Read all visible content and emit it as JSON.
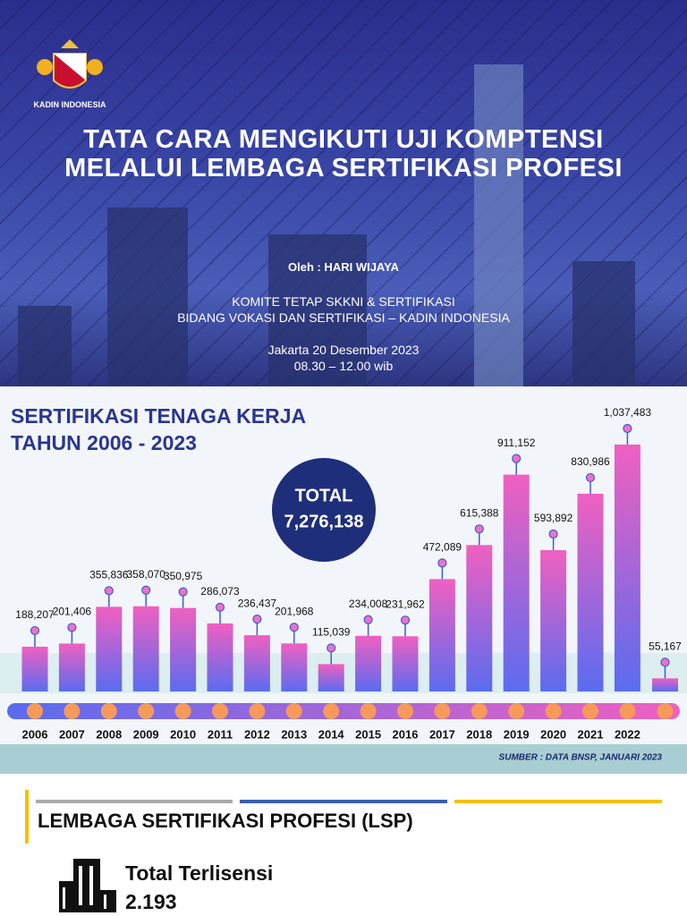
{
  "header": {
    "logo_text": "KADIN INDONESIA",
    "title_lines": [
      "TATA CARA MENGIKUTI UJI KOMPTENSI",
      "MELALUI LEMBAGA SERTIFIKASI PROFESI"
    ],
    "author": "Oleh : HARI WIJAYA",
    "committee_lines": [
      "KOMITE TETAP SKKNI & SERTIFIKASI",
      "BIDANG VOKASI DAN SERTIFIKASI – KADIN INDONESIA"
    ],
    "date": "Jakarta 20 Desember 2023",
    "time": "08.30 – 12.00 wib"
  },
  "chart_data": {
    "type": "bar",
    "title": "SERTIFIKASI TENAGA KERJA TAHUN 2006 - 2023",
    "categories": [
      "2006",
      "2007",
      "2008",
      "2009",
      "2010",
      "2011",
      "2012",
      "2013",
      "2014",
      "2015",
      "2016",
      "2017",
      "2018",
      "2019",
      "2020",
      "2021",
      "2022",
      null
    ],
    "values": [
      188207,
      201406,
      355836,
      358070,
      350975,
      286073,
      236437,
      201968,
      115039,
      234008,
      231962,
      472089,
      615388,
      911152,
      593892,
      830986,
      1037483,
      55167
    ],
    "value_labels": [
      "188,207",
      "201,406",
      "355,836",
      "358,070",
      "350,975",
      "286,073",
      "236,437",
      "201,968",
      "115,039",
      "234,008",
      "231,962",
      "472,089",
      "615,388",
      "911,152",
      "593,892",
      "830,986",
      "1,037,483",
      "55,167"
    ],
    "total": {
      "label": "TOTAL",
      "value": 7276138,
      "value_label": "7,276,138"
    },
    "source": "SUMBER : DATA BNSP, JANUARI 2023"
  },
  "lsp": {
    "title": "LEMBAGA SERTIFIKASI PROFESI (LSP)",
    "licensed_label": "Total Terlisensi",
    "licensed_value": "2.193"
  }
}
